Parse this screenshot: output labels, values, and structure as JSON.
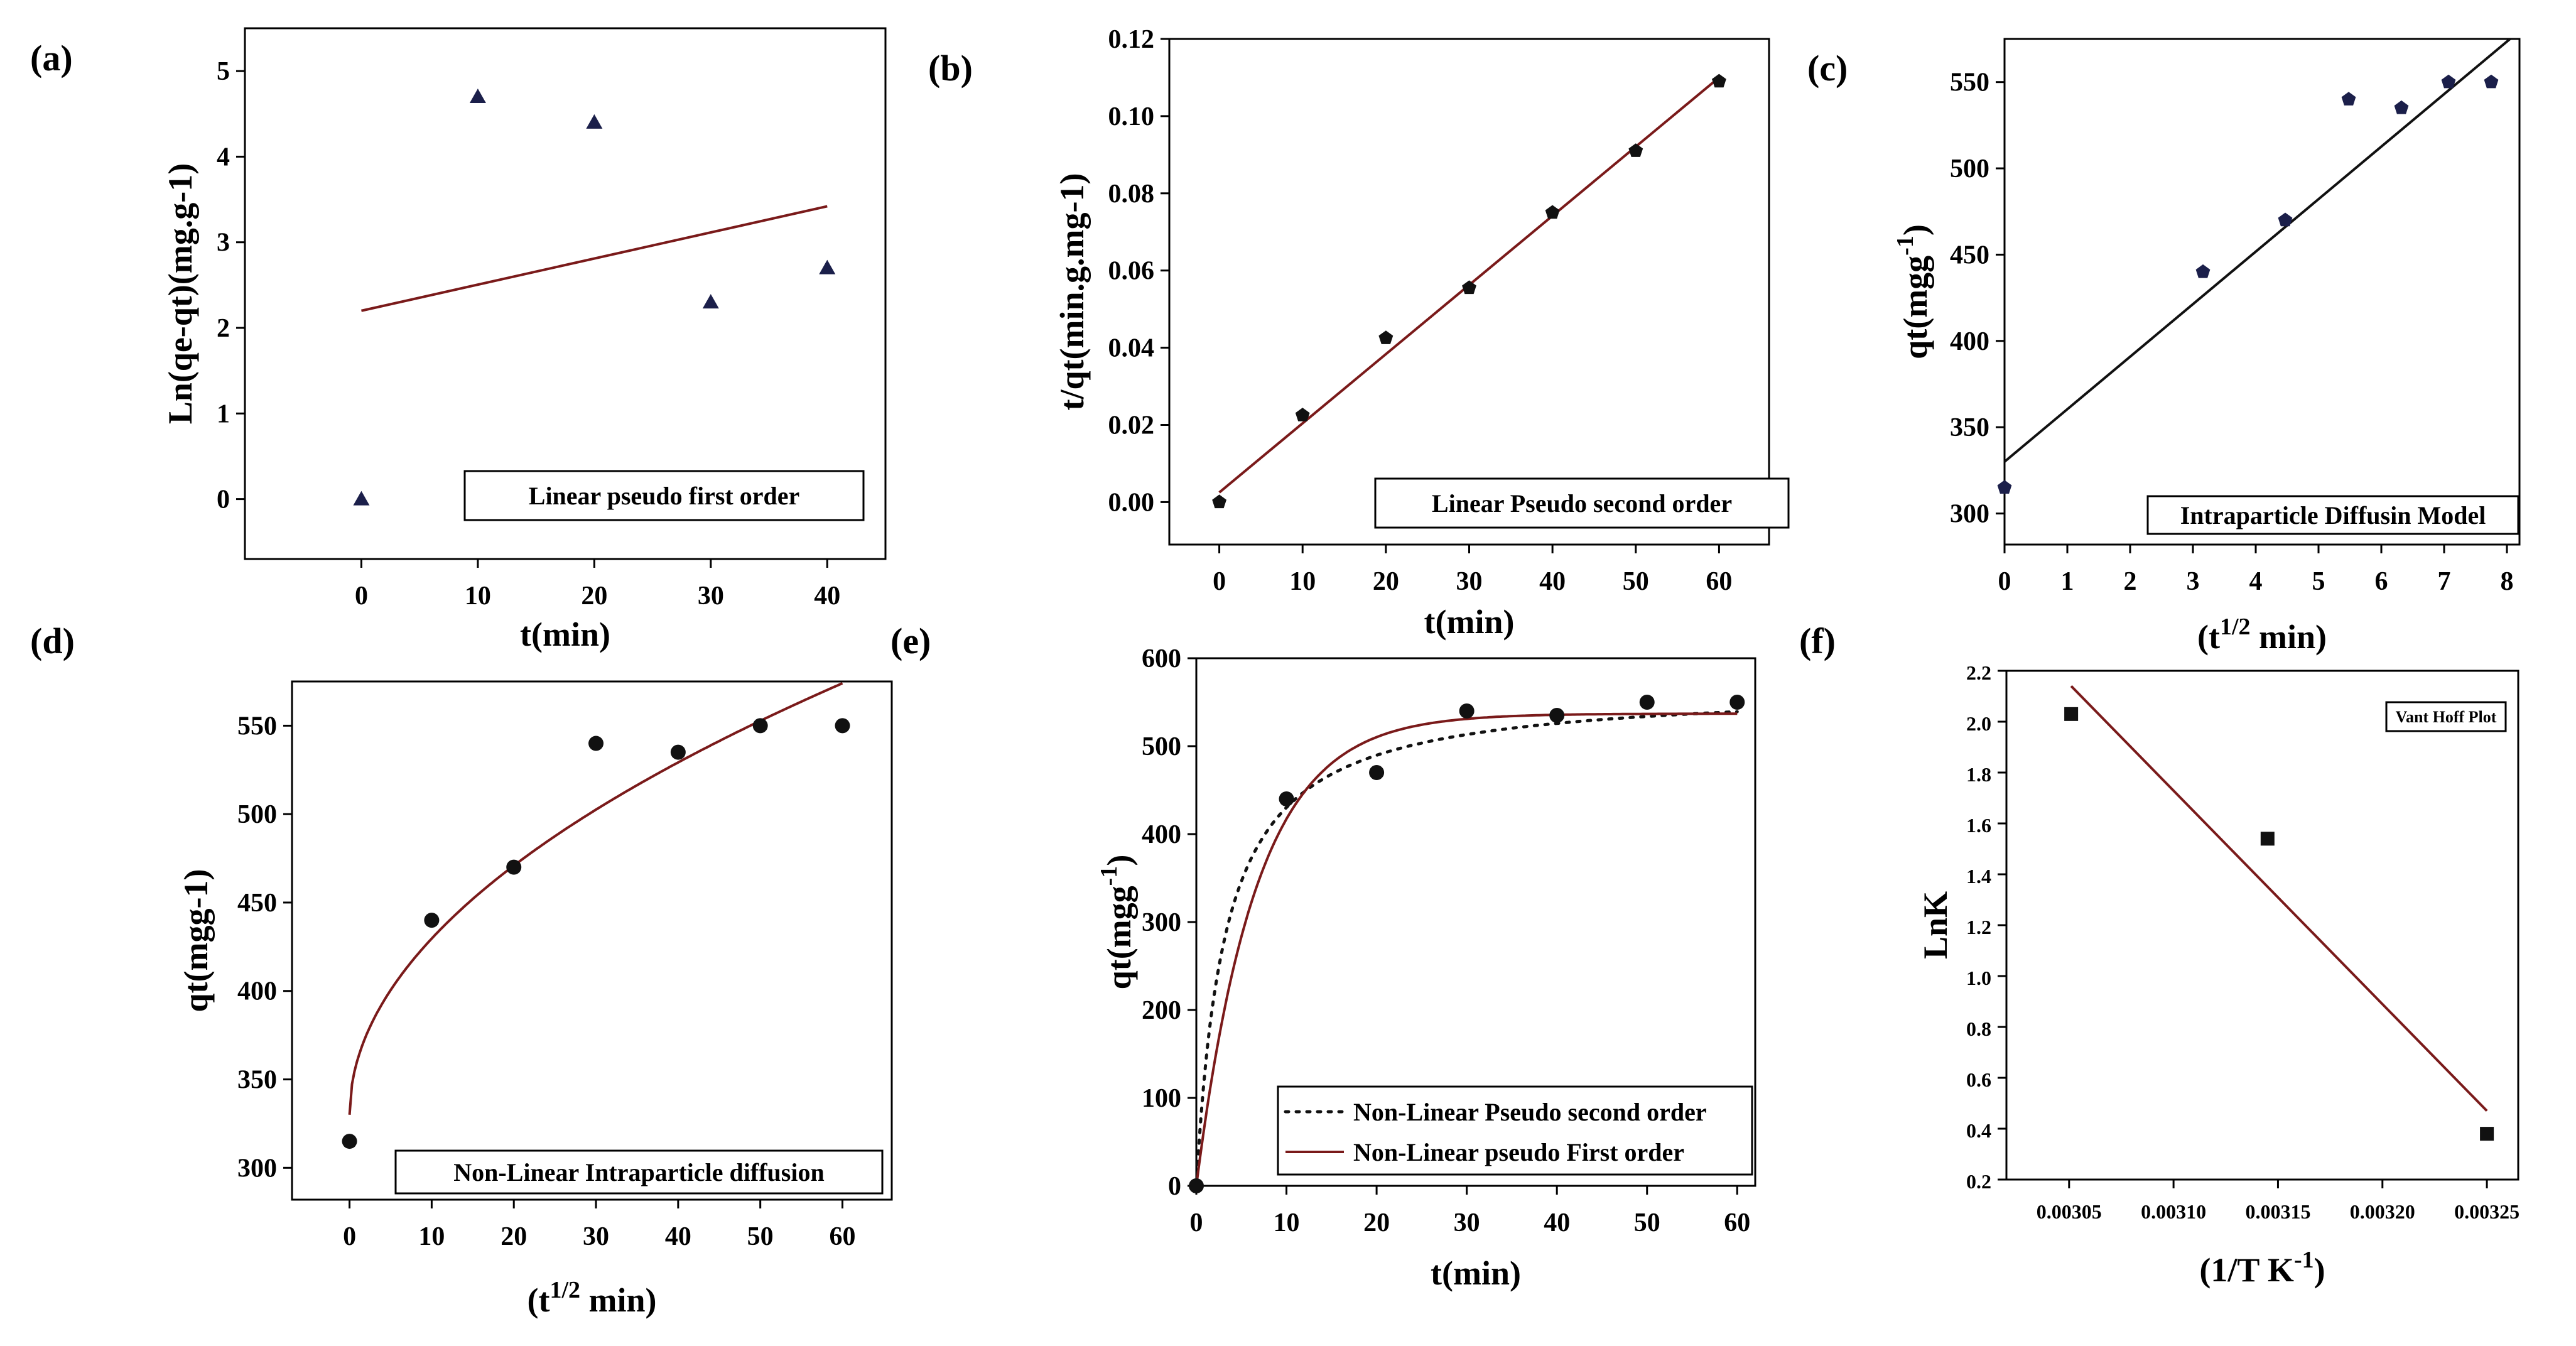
{
  "chart_data": [
    {
      "panel": "(a)",
      "type": "scatter",
      "xlabel": "t(min)",
      "ylabel": "Ln(qe-qt)(mg.g-1)",
      "xlim": [
        -10,
        45
      ],
      "ylim": [
        -0.7,
        5.5
      ],
      "xticks": [
        "0",
        "10",
        "20",
        "30",
        "40"
      ],
      "yticks": [
        "0",
        "1",
        "2",
        "3",
        "4",
        "5"
      ],
      "legend": "Linear pseudo first order",
      "points": [
        [
          0,
          0.0
        ],
        [
          10,
          4.7
        ],
        [
          20,
          4.4
        ],
        [
          30,
          2.3
        ],
        [
          40,
          2.7
        ]
      ],
      "fit_line": [
        [
          0,
          2.2
        ],
        [
          40,
          3.42
        ]
      ],
      "marker": "triangle",
      "colors": {
        "marker": "#1b1f4a",
        "line": "#7a1a1a"
      }
    },
    {
      "panel": "(b)",
      "type": "scatter",
      "xlabel": "t(min)",
      "ylabel": "t/qt(min.g.mg-1)",
      "xlim": [
        -6,
        66
      ],
      "ylim": [
        -0.011,
        0.12
      ],
      "xticks": [
        "0",
        "10",
        "20",
        "30",
        "40",
        "50",
        "60"
      ],
      "yticks": [
        "0.00",
        "0.02",
        "0.04",
        "0.06",
        "0.08",
        "0.10",
        "0.12"
      ],
      "legend": "Linear Pseudo second order",
      "points": [
        [
          0,
          0.0
        ],
        [
          10,
          0.0225
        ],
        [
          20,
          0.0425
        ],
        [
          30,
          0.0555
        ],
        [
          40,
          0.075
        ],
        [
          50,
          0.091
        ],
        [
          60,
          0.109
        ]
      ],
      "fit_line": [
        [
          0,
          0.0025
        ],
        [
          60,
          0.11
        ]
      ],
      "marker": "pentagon",
      "colors": {
        "marker": "#111111",
        "line": "#7a1a1a"
      }
    },
    {
      "panel": "(c)",
      "type": "scatter",
      "xlabel": "(t",
      "xlabel_sup": "1/2",
      "xlabel_tail": " min)",
      "ylabel": "qt(mgg",
      "ylabel_sup": "-1",
      "ylabel_tail": ")",
      "xlim": [
        0,
        8.2
      ],
      "ylim": [
        282,
        575
      ],
      "xticks": [
        "0",
        "1",
        "2",
        "3",
        "4",
        "5",
        "6",
        "7",
        "8"
      ],
      "yticks": [
        "300",
        "350",
        "400",
        "450",
        "500",
        "550"
      ],
      "legend": "Intraparticle Diffusin Model",
      "points": [
        [
          0,
          315
        ],
        [
          3.16,
          440
        ],
        [
          4.47,
          470
        ],
        [
          5.48,
          540
        ],
        [
          6.32,
          535
        ],
        [
          7.07,
          550
        ],
        [
          7.75,
          550
        ]
      ],
      "fit_line": [
        [
          0,
          330
        ],
        [
          8.05,
          575
        ]
      ],
      "marker": "pentagon",
      "colors": {
        "marker": "#1b1f4a",
        "line": "#111111"
      }
    },
    {
      "panel": "(d)",
      "type": "scatter",
      "xlabel": "(t",
      "xlabel_sup": "1/2",
      "xlabel_tail": " min)",
      "ylabel": "qt(mgg-1)",
      "xlim": [
        -7,
        66
      ],
      "ylim": [
        282,
        575
      ],
      "xticks": [
        "0",
        "10",
        "20",
        "30",
        "40",
        "50",
        "60"
      ],
      "yticks": [
        "300",
        "350",
        "400",
        "450",
        "500",
        "550"
      ],
      "legend": "Non-Linear Intraparticle diffusion",
      "points": [
        [
          0,
          315
        ],
        [
          10,
          440
        ],
        [
          20,
          470
        ],
        [
          30,
          540
        ],
        [
          40,
          535
        ],
        [
          50,
          550
        ],
        [
          60,
          550
        ]
      ],
      "fit_curve": {
        "model": "a + b*sqrt(t)",
        "a": 330,
        "b": 31.5,
        "t_range": [
          0,
          60
        ]
      },
      "marker": "circle",
      "colors": {
        "marker": "#111111",
        "line": "#7a1a1a"
      }
    },
    {
      "panel": "(e)",
      "type": "scatter",
      "xlabel": "t(min)",
      "ylabel": "qt(mgg",
      "ylabel_sup": "-1",
      "ylabel_tail": ")",
      "xlim": [
        0,
        62
      ],
      "ylim": [
        0,
        600
      ],
      "xticks": [
        "0",
        "10",
        "20",
        "30",
        "40",
        "50",
        "60"
      ],
      "yticks": [
        "0",
        "100",
        "200",
        "300",
        "400",
        "500",
        "600"
      ],
      "series": [
        {
          "name": "Non-Linear Pseudo second order",
          "style": "dotted",
          "model": "qe*qe*k*t/(1+qe*k*t)",
          "qe": 568,
          "k": 0.00055
        },
        {
          "name": "Non-Linear pseudo First order",
          "style": "solid",
          "model": "qe*(1-exp(-k*t))",
          "qe": 537,
          "k": 0.15
        }
      ],
      "points": [
        [
          0,
          0
        ],
        [
          10,
          440
        ],
        [
          20,
          470
        ],
        [
          30,
          540
        ],
        [
          40,
          535
        ],
        [
          50,
          550
        ],
        [
          60,
          550
        ]
      ],
      "marker": "circle",
      "colors": {
        "marker": "#111111",
        "line": "#7a1a1a"
      }
    },
    {
      "panel": "(f)",
      "type": "scatter",
      "xlabel": "(1/T K",
      "xlabel_sup": "-1",
      "xlabel_tail": ")",
      "ylabel": "LnK",
      "xlim": [
        0.00302,
        0.003265
      ],
      "ylim": [
        0.2,
        2.2
      ],
      "xticks": [
        "0.00305",
        "0.00310",
        "0.00315",
        "0.00320",
        "0.00325"
      ],
      "yticks": [
        "0.2",
        "0.4",
        "0.6",
        "0.8",
        "1.0",
        "1.2",
        "1.4",
        "1.6",
        "1.8",
        "2.0",
        "2.2"
      ],
      "legend": "Vant Hoff Plot",
      "points": [
        [
          0.003051,
          2.03
        ],
        [
          0.003145,
          1.54
        ],
        [
          0.00325,
          0.38
        ]
      ],
      "fit_line": [
        [
          0.003051,
          2.14
        ],
        [
          0.00325,
          0.47
        ]
      ],
      "marker": "square",
      "colors": {
        "marker": "#111111",
        "line": "#7a1a1a"
      }
    }
  ]
}
